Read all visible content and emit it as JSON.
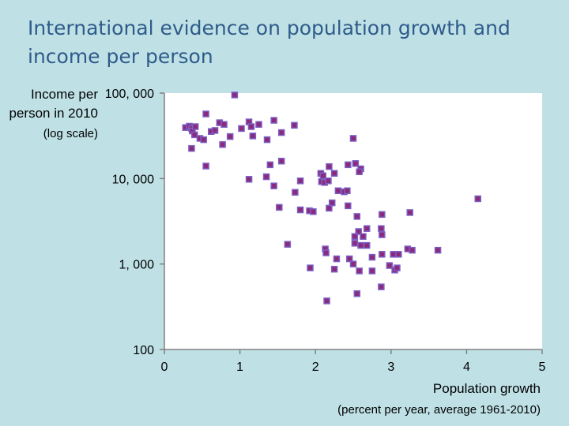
{
  "title": "International evidence on population growth and income per person",
  "chart_data": {
    "type": "scatter",
    "title": "International evidence on population growth and income per person",
    "ylabel": "Income per person in 2010",
    "ylabel_note": "(log scale)",
    "xlabel": "Population growth",
    "xlabel_note": "(percent per year, average 1961-2010)",
    "x_ticks": [
      "0",
      "1",
      "2",
      "3",
      "4",
      "5"
    ],
    "y_ticks": [
      "100",
      "1, 000",
      "10, 000",
      "100, 000"
    ],
    "y_tick_values": [
      100,
      1000,
      10000,
      100000
    ],
    "xlim": [
      0,
      5
    ],
    "ylim": [
      100,
      100000
    ],
    "y_scale": "log",
    "grid": false,
    "marker_color": "#8b2a7c",
    "marker_edge_color": "#7b5fc4",
    "points": [
      [
        0.93,
        95000
      ],
      [
        0.55,
        57000
      ],
      [
        0.28,
        39500
      ],
      [
        0.33,
        41000
      ],
      [
        0.36,
        38500
      ],
      [
        0.37,
        36000
      ],
      [
        0.41,
        40500
      ],
      [
        0.4,
        32500
      ],
      [
        0.47,
        29500
      ],
      [
        0.52,
        28500
      ],
      [
        0.36,
        22500
      ],
      [
        0.62,
        35500
      ],
      [
        0.67,
        36500
      ],
      [
        0.73,
        45000
      ],
      [
        0.79,
        43000
      ],
      [
        0.77,
        25000
      ],
      [
        0.87,
        31000
      ],
      [
        1.02,
        38500
      ],
      [
        1.12,
        46000
      ],
      [
        1.15,
        40500
      ],
      [
        1.17,
        31500
      ],
      [
        1.25,
        43000
      ],
      [
        1.36,
        28500
      ],
      [
        1.45,
        48000
      ],
      [
        1.55,
        34500
      ],
      [
        1.72,
        42000
      ],
      [
        1.55,
        16000
      ],
      [
        1.4,
        14500
      ],
      [
        0.55,
        14000
      ],
      [
        1.35,
        10500
      ],
      [
        1.12,
        9800
      ],
      [
        1.45,
        8200
      ],
      [
        1.8,
        9400
      ],
      [
        1.73,
        6900
      ],
      [
        1.52,
        4600
      ],
      [
        1.8,
        4300
      ],
      [
        1.92,
        4200
      ],
      [
        1.97,
        4100
      ],
      [
        1.63,
        1700
      ],
      [
        2.07,
        11500
      ],
      [
        2.1,
        10800
      ],
      [
        2.18,
        13800
      ],
      [
        2.25,
        11500
      ],
      [
        2.08,
        9200
      ],
      [
        2.12,
        9000
      ],
      [
        2.17,
        9400
      ],
      [
        2.22,
        5200
      ],
      [
        2.18,
        4500
      ],
      [
        2.3,
        7200
      ],
      [
        2.38,
        7000
      ],
      [
        2.42,
        7200
      ],
      [
        2.43,
        14500
      ],
      [
        2.5,
        29500
      ],
      [
        2.53,
        15000
      ],
      [
        2.6,
        13000
      ],
      [
        2.58,
        12000
      ],
      [
        2.43,
        4800
      ],
      [
        2.55,
        3600
      ],
      [
        2.57,
        2400
      ],
      [
        2.52,
        2100
      ],
      [
        2.63,
        2100
      ],
      [
        2.68,
        2600
      ],
      [
        2.88,
        3800
      ],
      [
        2.87,
        2600
      ],
      [
        2.88,
        2200
      ],
      [
        3.25,
        4000
      ],
      [
        2.52,
        1750
      ],
      [
        2.6,
        1650
      ],
      [
        2.68,
        1650
      ],
      [
        2.13,
        1500
      ],
      [
        2.14,
        1350
      ],
      [
        2.28,
        1150
      ],
      [
        2.45,
        1150
      ],
      [
        2.5,
        1000
      ],
      [
        2.75,
        1200
      ],
      [
        2.88,
        1300
      ],
      [
        3.03,
        1300
      ],
      [
        3.1,
        1300
      ],
      [
        3.22,
        1500
      ],
      [
        3.28,
        1450
      ],
      [
        3.62,
        1450
      ],
      [
        1.93,
        900
      ],
      [
        2.25,
        870
      ],
      [
        2.58,
        830
      ],
      [
        2.75,
        830
      ],
      [
        2.98,
        960
      ],
      [
        3.05,
        850
      ],
      [
        3.08,
        900
      ],
      [
        2.87,
        540
      ],
      [
        2.55,
        450
      ],
      [
        2.15,
        370
      ],
      [
        4.15,
        5800
      ]
    ]
  }
}
